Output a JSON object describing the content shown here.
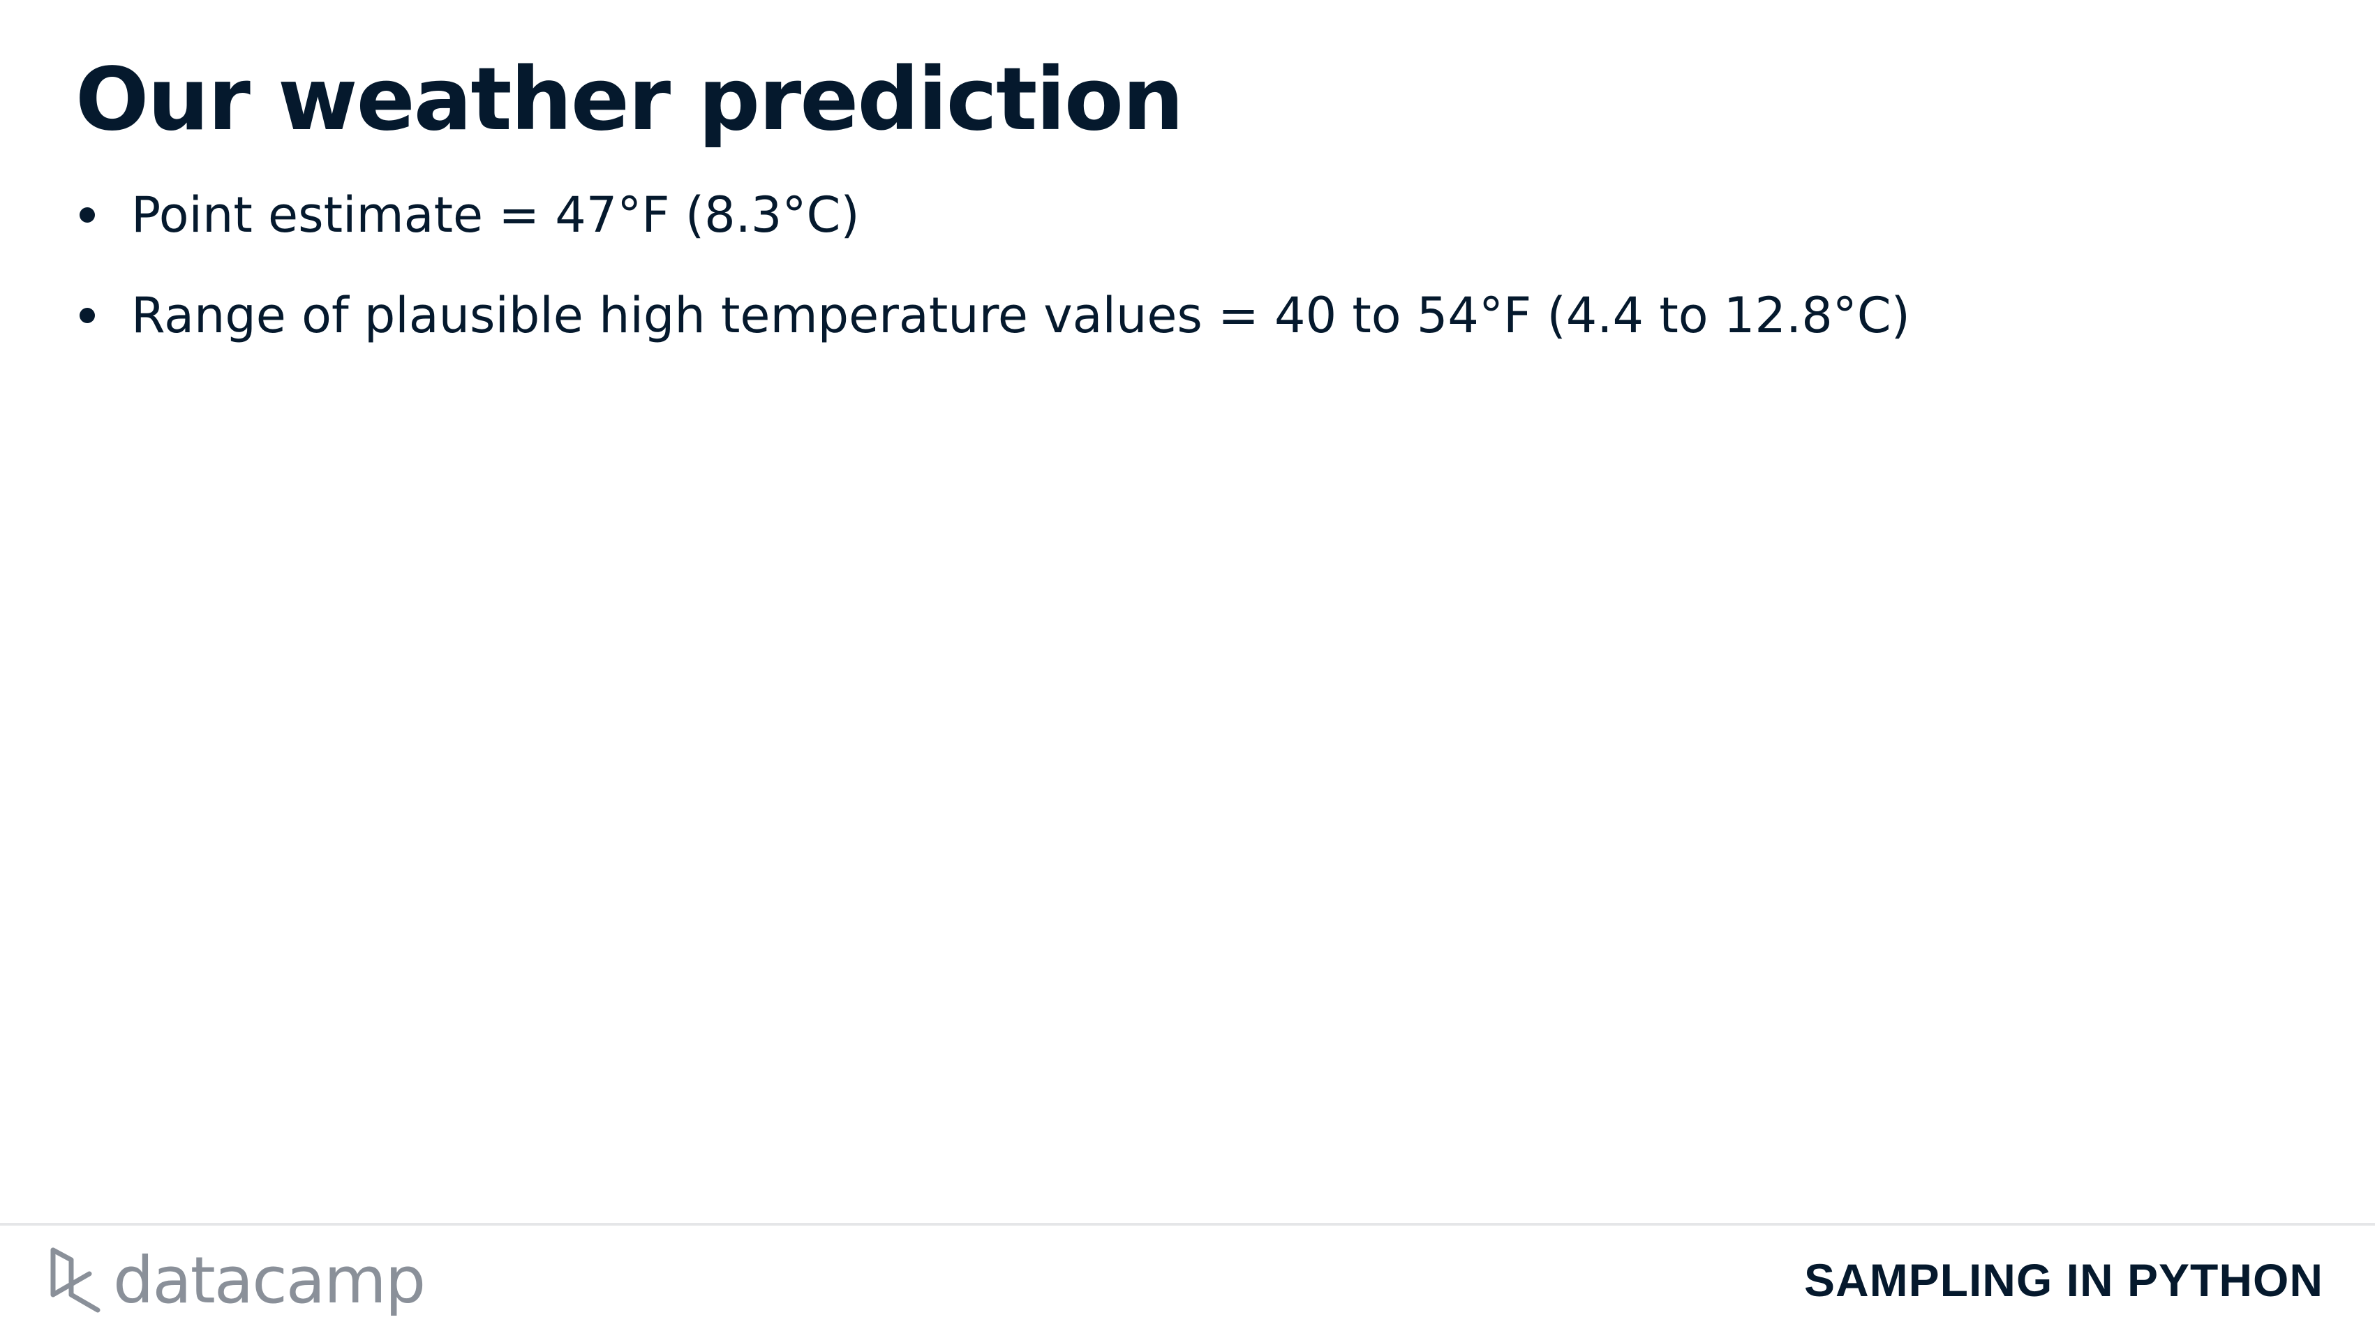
{
  "slide": {
    "title": "Our weather prediction",
    "bullets": [
      {
        "text": "Point estimate = 47°F (8.3°C)"
      },
      {
        "text": "Range of plausible high temperature values = 40 to 54°F (4.4 to 12.8°C)"
      }
    ]
  },
  "footer": {
    "logo_text": "datacamp",
    "logo_icon": "datacamp-logo-icon",
    "course_name": "SAMPLING IN PYTHON"
  },
  "colors": {
    "text": "#05192d",
    "logo": "#8a9099",
    "divider": "#e5e6e8",
    "background": "#ffffff"
  }
}
